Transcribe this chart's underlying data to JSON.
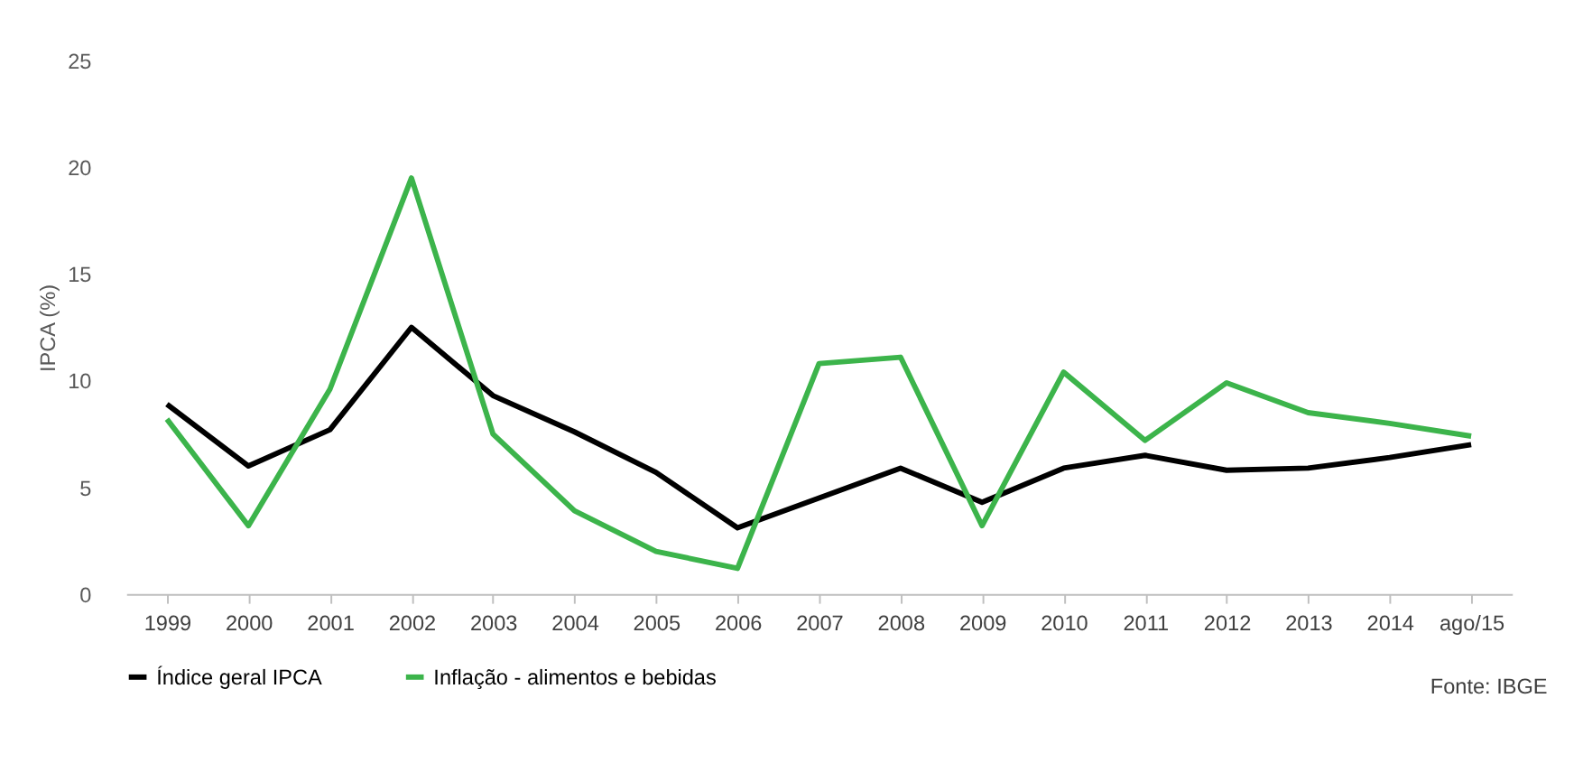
{
  "chart_data": {
    "type": "line",
    "ylabel": "IPCA (%)",
    "categories": [
      "1999",
      "2000",
      "2001",
      "2002",
      "2003",
      "2004",
      "2005",
      "2006",
      "2007",
      "2008",
      "2009",
      "2010",
      "2011",
      "2012",
      "2013",
      "2014",
      "ago/15"
    ],
    "series": [
      {
        "name": "Índice geral IPCA",
        "color": "#000000",
        "values": [
          8.9,
          6.0,
          7.7,
          12.5,
          9.3,
          7.6,
          5.7,
          3.1,
          4.5,
          5.9,
          4.3,
          5.9,
          6.5,
          5.8,
          5.9,
          6.4,
          7.0
        ]
      },
      {
        "name": "Inflação - alimentos e bebidas",
        "color": "#3cb44b",
        "values": [
          8.2,
          3.2,
          9.6,
          19.5,
          7.5,
          3.9,
          2.0,
          1.2,
          10.8,
          11.1,
          3.2,
          10.4,
          7.2,
          9.9,
          8.5,
          8.0,
          7.4
        ]
      }
    ],
    "ylim": [
      0,
      25
    ],
    "yticks": [
      0,
      5,
      10,
      15,
      20,
      25
    ],
    "grid": false,
    "legend": "bottom",
    "marker": "none",
    "line_style": "solid",
    "annotations": [
      "Fonte: IBGE"
    ]
  }
}
